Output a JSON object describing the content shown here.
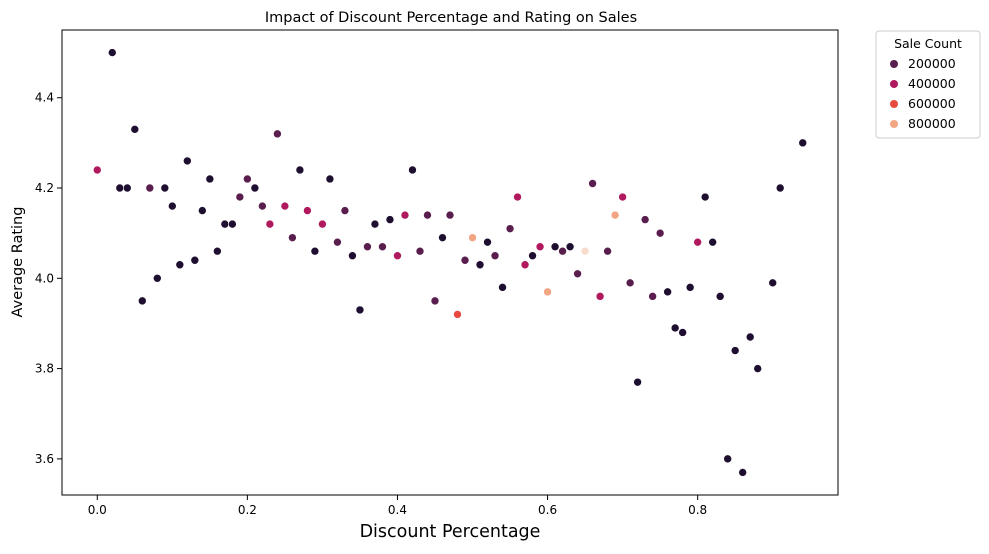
{
  "chart_data": {
    "type": "scatter",
    "title": "Impact of Discount Percentage and Rating on Sales",
    "xlabel": "Discount Percentage",
    "ylabel": "Average Rating",
    "xlim": [
      -0.047,
      0.987
    ],
    "ylim": [
      3.52,
      4.55
    ],
    "xticks": [
      0.0,
      0.2,
      0.4,
      0.6,
      0.8
    ],
    "xtick_labels": [
      "0.0",
      "0.2",
      "0.4",
      "0.6",
      "0.8"
    ],
    "yticks": [
      3.6,
      3.8,
      4.0,
      4.2,
      4.4
    ],
    "ytick_labels": [
      "3.6",
      "3.8",
      "4.0",
      "4.2",
      "4.4"
    ],
    "grid": false,
    "legend": {
      "title": "Sale Count",
      "placement": "outside-top-right",
      "entries": [
        {
          "label": "200000",
          "color": "#5a1e4e"
        },
        {
          "label": "400000",
          "color": "#b1195f"
        },
        {
          "label": "600000",
          "color": "#e84a42"
        },
        {
          "label": "800000",
          "color": "#f2a582"
        }
      ]
    },
    "colors": {
      "dark": "#1e0f30",
      "plum": "#5a1e4e",
      "magenta": "#b1195f",
      "red": "#e84a42",
      "peach": "#f2a582",
      "cream": "#f8dccd"
    },
    "points": [
      {
        "x": 0.0,
        "y": 4.24,
        "c": "magenta"
      },
      {
        "x": 0.02,
        "y": 4.5,
        "c": "dark"
      },
      {
        "x": 0.03,
        "y": 4.2,
        "c": "dark"
      },
      {
        "x": 0.04,
        "y": 4.2,
        "c": "dark"
      },
      {
        "x": 0.05,
        "y": 4.33,
        "c": "dark"
      },
      {
        "x": 0.06,
        "y": 3.95,
        "c": "dark"
      },
      {
        "x": 0.07,
        "y": 4.2,
        "c": "plum"
      },
      {
        "x": 0.08,
        "y": 4.0,
        "c": "dark"
      },
      {
        "x": 0.09,
        "y": 4.2,
        "c": "dark"
      },
      {
        "x": 0.1,
        "y": 4.16,
        "c": "dark"
      },
      {
        "x": 0.11,
        "y": 4.03,
        "c": "dark"
      },
      {
        "x": 0.12,
        "y": 4.26,
        "c": "dark"
      },
      {
        "x": 0.13,
        "y": 4.04,
        "c": "dark"
      },
      {
        "x": 0.14,
        "y": 4.15,
        "c": "dark"
      },
      {
        "x": 0.15,
        "y": 4.22,
        "c": "dark"
      },
      {
        "x": 0.16,
        "y": 4.06,
        "c": "dark"
      },
      {
        "x": 0.17,
        "y": 4.12,
        "c": "dark"
      },
      {
        "x": 0.18,
        "y": 4.12,
        "c": "dark"
      },
      {
        "x": 0.19,
        "y": 4.18,
        "c": "plum"
      },
      {
        "x": 0.2,
        "y": 4.22,
        "c": "plum"
      },
      {
        "x": 0.21,
        "y": 4.2,
        "c": "dark"
      },
      {
        "x": 0.22,
        "y": 4.16,
        "c": "plum"
      },
      {
        "x": 0.23,
        "y": 4.12,
        "c": "magenta"
      },
      {
        "x": 0.24,
        "y": 4.32,
        "c": "plum"
      },
      {
        "x": 0.25,
        "y": 4.16,
        "c": "magenta"
      },
      {
        "x": 0.26,
        "y": 4.09,
        "c": "plum"
      },
      {
        "x": 0.27,
        "y": 4.24,
        "c": "dark"
      },
      {
        "x": 0.28,
        "y": 4.15,
        "c": "magenta"
      },
      {
        "x": 0.29,
        "y": 4.06,
        "c": "dark"
      },
      {
        "x": 0.3,
        "y": 4.12,
        "c": "magenta"
      },
      {
        "x": 0.31,
        "y": 4.22,
        "c": "dark"
      },
      {
        "x": 0.32,
        "y": 4.08,
        "c": "plum"
      },
      {
        "x": 0.33,
        "y": 4.15,
        "c": "plum"
      },
      {
        "x": 0.34,
        "y": 4.05,
        "c": "dark"
      },
      {
        "x": 0.35,
        "y": 3.93,
        "c": "dark"
      },
      {
        "x": 0.36,
        "y": 4.07,
        "c": "plum"
      },
      {
        "x": 0.37,
        "y": 4.12,
        "c": "dark"
      },
      {
        "x": 0.38,
        "y": 4.07,
        "c": "plum"
      },
      {
        "x": 0.39,
        "y": 4.13,
        "c": "dark"
      },
      {
        "x": 0.4,
        "y": 4.05,
        "c": "magenta"
      },
      {
        "x": 0.41,
        "y": 4.14,
        "c": "magenta"
      },
      {
        "x": 0.42,
        "y": 4.24,
        "c": "dark"
      },
      {
        "x": 0.43,
        "y": 4.06,
        "c": "plum"
      },
      {
        "x": 0.44,
        "y": 4.14,
        "c": "plum"
      },
      {
        "x": 0.45,
        "y": 3.95,
        "c": "plum"
      },
      {
        "x": 0.46,
        "y": 4.09,
        "c": "dark"
      },
      {
        "x": 0.47,
        "y": 4.14,
        "c": "plum"
      },
      {
        "x": 0.48,
        "y": 3.92,
        "c": "red"
      },
      {
        "x": 0.49,
        "y": 4.04,
        "c": "plum"
      },
      {
        "x": 0.5,
        "y": 4.09,
        "c": "peach"
      },
      {
        "x": 0.51,
        "y": 4.03,
        "c": "dark"
      },
      {
        "x": 0.52,
        "y": 4.08,
        "c": "dark"
      },
      {
        "x": 0.53,
        "y": 4.05,
        "c": "plum"
      },
      {
        "x": 0.54,
        "y": 3.98,
        "c": "dark"
      },
      {
        "x": 0.55,
        "y": 4.11,
        "c": "plum"
      },
      {
        "x": 0.56,
        "y": 4.18,
        "c": "magenta"
      },
      {
        "x": 0.57,
        "y": 4.03,
        "c": "magenta"
      },
      {
        "x": 0.58,
        "y": 4.05,
        "c": "dark"
      },
      {
        "x": 0.59,
        "y": 4.07,
        "c": "magenta"
      },
      {
        "x": 0.6,
        "y": 3.97,
        "c": "peach"
      },
      {
        "x": 0.61,
        "y": 4.07,
        "c": "dark"
      },
      {
        "x": 0.62,
        "y": 4.06,
        "c": "plum"
      },
      {
        "x": 0.63,
        "y": 4.07,
        "c": "dark"
      },
      {
        "x": 0.64,
        "y": 4.01,
        "c": "plum"
      },
      {
        "x": 0.65,
        "y": 4.06,
        "c": "cream"
      },
      {
        "x": 0.66,
        "y": 4.21,
        "c": "plum"
      },
      {
        "x": 0.67,
        "y": 3.96,
        "c": "magenta"
      },
      {
        "x": 0.68,
        "y": 4.06,
        "c": "plum"
      },
      {
        "x": 0.69,
        "y": 4.14,
        "c": "peach"
      },
      {
        "x": 0.7,
        "y": 4.18,
        "c": "magenta"
      },
      {
        "x": 0.71,
        "y": 3.99,
        "c": "plum"
      },
      {
        "x": 0.72,
        "y": 3.77,
        "c": "dark"
      },
      {
        "x": 0.73,
        "y": 4.13,
        "c": "plum"
      },
      {
        "x": 0.74,
        "y": 3.96,
        "c": "plum"
      },
      {
        "x": 0.75,
        "y": 4.1,
        "c": "plum"
      },
      {
        "x": 0.76,
        "y": 3.97,
        "c": "dark"
      },
      {
        "x": 0.77,
        "y": 3.89,
        "c": "dark"
      },
      {
        "x": 0.78,
        "y": 3.88,
        "c": "dark"
      },
      {
        "x": 0.79,
        "y": 3.98,
        "c": "dark"
      },
      {
        "x": 0.8,
        "y": 4.08,
        "c": "magenta"
      },
      {
        "x": 0.81,
        "y": 4.18,
        "c": "dark"
      },
      {
        "x": 0.82,
        "y": 4.08,
        "c": "dark"
      },
      {
        "x": 0.83,
        "y": 3.96,
        "c": "dark"
      },
      {
        "x": 0.84,
        "y": 3.6,
        "c": "dark"
      },
      {
        "x": 0.85,
        "y": 3.84,
        "c": "dark"
      },
      {
        "x": 0.86,
        "y": 3.57,
        "c": "dark"
      },
      {
        "x": 0.87,
        "y": 3.87,
        "c": "dark"
      },
      {
        "x": 0.88,
        "y": 3.8,
        "c": "dark"
      },
      {
        "x": 0.9,
        "y": 3.99,
        "c": "dark"
      },
      {
        "x": 0.91,
        "y": 4.2,
        "c": "dark"
      },
      {
        "x": 0.94,
        "y": 4.3,
        "c": "dark"
      }
    ]
  }
}
